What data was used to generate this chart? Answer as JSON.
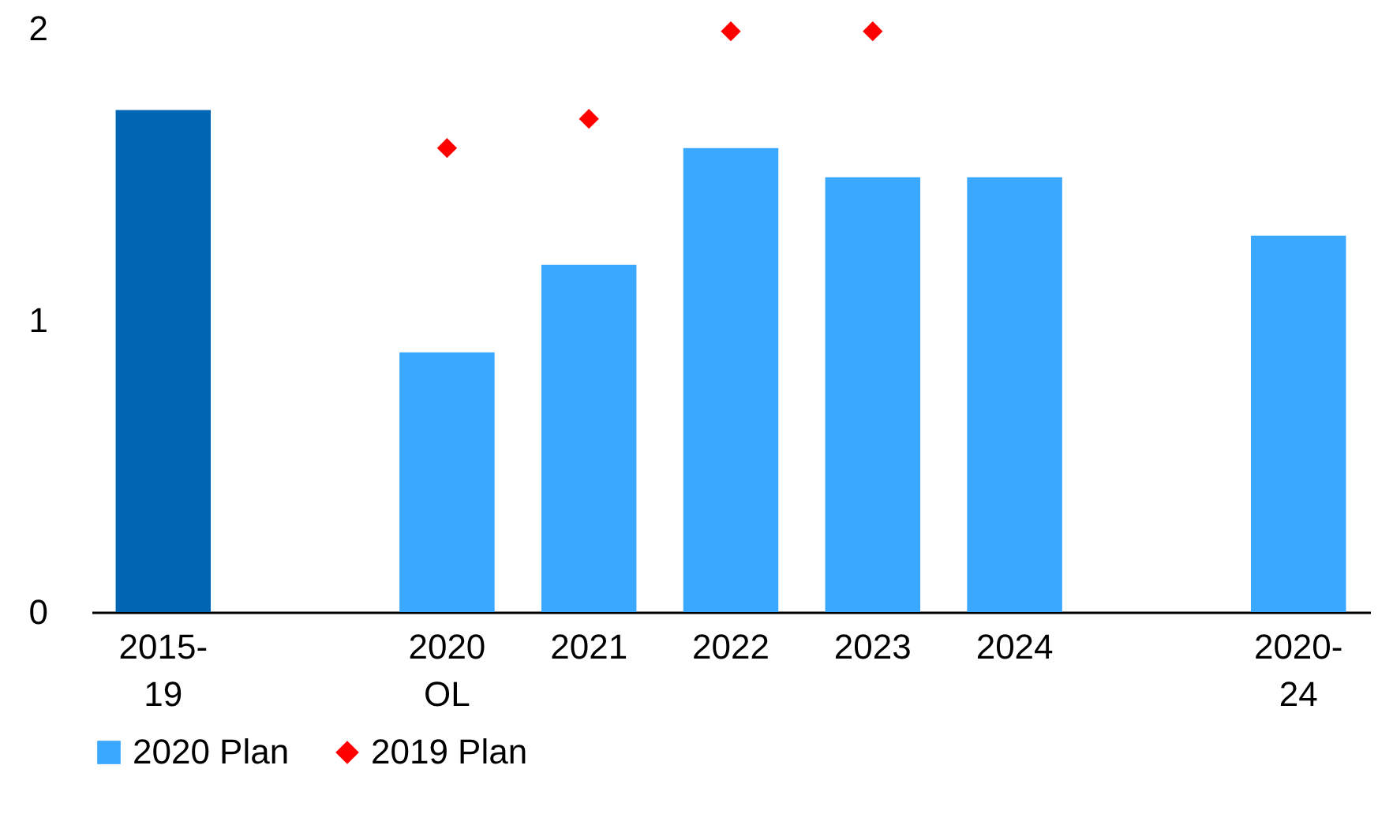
{
  "chart_data": {
    "type": "bar",
    "categories": [
      "2015-19",
      null,
      "2020 OL",
      "2021",
      "2022",
      "2023",
      "2024",
      null,
      "2020-24"
    ],
    "series": [
      {
        "name": "2020 Plan",
        "type": "bar",
        "color": "#3aa8ff",
        "colors": [
          "#0066b3",
          null,
          "#3aa8ff",
          "#3aa8ff",
          "#3aa8ff",
          "#3aa8ff",
          "#3aa8ff",
          null,
          "#3aa8ff"
        ],
        "values": [
          1.72,
          null,
          0.89,
          1.19,
          1.59,
          1.49,
          1.49,
          null,
          1.29
        ]
      },
      {
        "name": "2019 Plan",
        "type": "scatter",
        "color": "#ff0000",
        "marker": "diamond",
        "values": [
          null,
          null,
          1.59,
          1.69,
          1.99,
          1.99,
          null,
          null,
          null
        ]
      }
    ],
    "ylim": [
      0,
      2
    ],
    "yticks": [
      0,
      1,
      2
    ],
    "grid": false,
    "legend": "bottom"
  }
}
